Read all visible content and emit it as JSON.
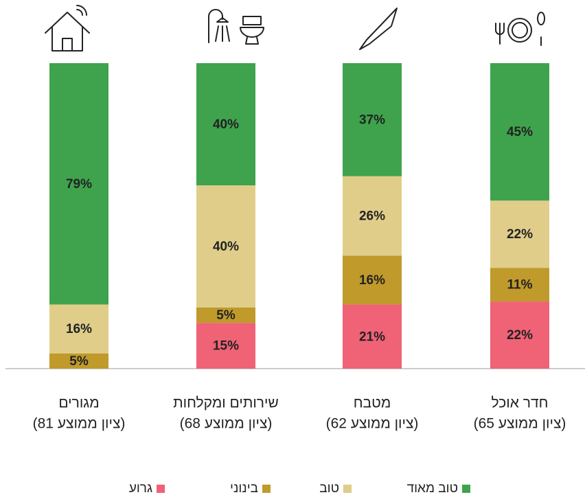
{
  "chart_data": {
    "type": "stacked_bar",
    "categories": [
      "מגורים",
      "שירותים ומקלחות",
      "מטבח",
      "חדר אוכל"
    ],
    "category_notes": [
      "(ציון ממוצע 81)",
      "(ציון ממוצע 68)",
      "(ציון ממוצע 62)",
      "(ציון ממוצע 65)"
    ],
    "ylim": [
      0,
      100
    ],
    "series": [
      {
        "name": "גרוע",
        "color": "#f06275",
        "values": [
          null,
          15,
          21,
          22
        ],
        "value_labels": [
          null,
          "15%",
          "21%",
          "22%"
        ]
      },
      {
        "name": "בינוני",
        "color": "#c09a2a",
        "values": [
          5,
          5,
          16,
          11
        ],
        "value_labels": [
          "5%",
          "5%",
          "16%",
          "11%"
        ]
      },
      {
        "name": "טוב",
        "color": "#e0cd8a",
        "values": [
          16,
          40,
          26,
          22
        ],
        "value_labels": [
          "16%",
          "40%",
          "26%",
          "22%"
        ]
      },
      {
        "name": "טוב מאוד",
        "color": "#3fa34d",
        "values": [
          79,
          40,
          37,
          45
        ],
        "value_labels": [
          "79%",
          "40%",
          "37%",
          "45%"
        ]
      }
    ]
  }
}
